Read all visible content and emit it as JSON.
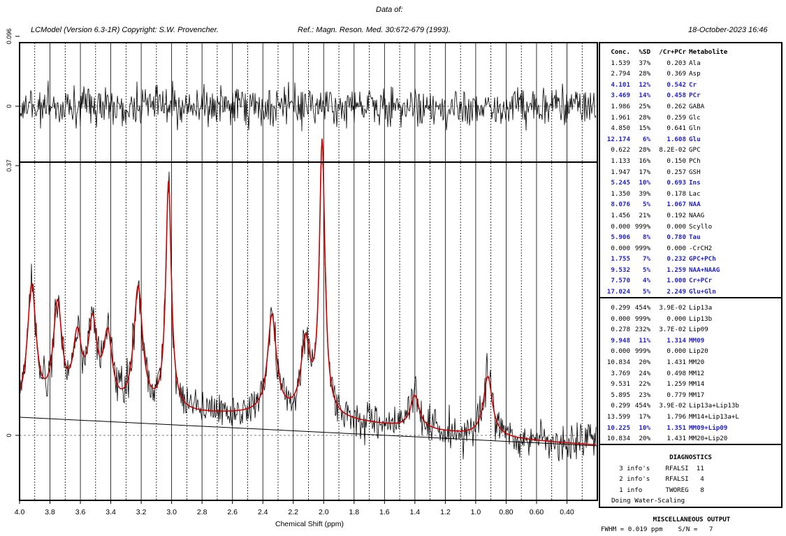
{
  "header": {
    "top": "Data of:",
    "left": "LCModel (Version 6.3-1R) Copyright: S.W. Provencher.",
    "ref": "Ref.: Magn. Reson. Med. 30:672-679 (1993).",
    "date": "18-October-2023  16:46"
  },
  "chart_data": {
    "type": "line",
    "xlabel": "Chemical Shift (ppm)",
    "xlim": [
      4.0,
      0.2
    ],
    "x_ticks": [
      "4.0",
      "3.8",
      "3.6",
      "3.4",
      "3.2",
      "3.0",
      "2.8",
      "2.6",
      "2.4",
      "2.2",
      "2.0",
      "1.8",
      "1.6",
      "1.4",
      "1.2",
      "1.0",
      "0.80",
      "0.60",
      "0.40"
    ],
    "residual_panel": {
      "y_ticks": [
        "0.096",
        "0"
      ]
    },
    "spectrum_panel": {
      "y_ticks": [
        "0.37",
        "0"
      ],
      "fit_peaks": [
        {
          "ppm": 3.92,
          "height": 0.46
        },
        {
          "ppm": 3.75,
          "height": 0.38
        },
        {
          "ppm": 3.62,
          "height": 0.25
        },
        {
          "ppm": 3.52,
          "height": 0.3
        },
        {
          "ppm": 3.42,
          "height": 0.26
        },
        {
          "ppm": 3.22,
          "height": 0.45
        },
        {
          "ppm": 3.02,
          "height": 0.84
        },
        {
          "ppm": 2.34,
          "height": 0.36
        },
        {
          "ppm": 2.12,
          "height": 0.26
        },
        {
          "ppm": 2.01,
          "height": 1.0
        },
        {
          "ppm": 1.4,
          "height": 0.12
        },
        {
          "ppm": 0.92,
          "height": 0.22
        }
      ]
    },
    "series": [
      {
        "name": "Data",
        "color": "#000000"
      },
      {
        "name": "Fit",
        "color": "#cc0000"
      },
      {
        "name": "Baseline",
        "color": "#000000"
      }
    ]
  },
  "table": {
    "headers": [
      "Conc.",
      "%SD",
      "/Cr+PCr",
      "Metabolite"
    ],
    "metabolites": [
      {
        "conc": "1.539",
        "sd": "37%",
        "ratio": "0.203",
        "name": "Ala",
        "hl": false
      },
      {
        "conc": "2.794",
        "sd": "28%",
        "ratio": "0.369",
        "name": "Asp",
        "hl": false
      },
      {
        "conc": "4.101",
        "sd": "12%",
        "ratio": "0.542",
        "name": "Cr",
        "hl": true
      },
      {
        "conc": "3.469",
        "sd": "14%",
        "ratio": "0.458",
        "name": "PCr",
        "hl": true
      },
      {
        "conc": "1.986",
        "sd": "25%",
        "ratio": "0.262",
        "name": "GABA",
        "hl": false
      },
      {
        "conc": "1.961",
        "sd": "28%",
        "ratio": "0.259",
        "name": "Glc",
        "hl": false
      },
      {
        "conc": "4.850",
        "sd": "15%",
        "ratio": "0.641",
        "name": "Gln",
        "hl": false
      },
      {
        "conc": "12.174",
        "sd": "6%",
        "ratio": "1.608",
        "name": "Glu",
        "hl": true
      },
      {
        "conc": "0.622",
        "sd": "28%",
        "ratio": "8.2E-02",
        "name": "GPC",
        "hl": false
      },
      {
        "conc": "1.133",
        "sd": "16%",
        "ratio": "0.150",
        "name": "PCh",
        "hl": false
      },
      {
        "conc": "1.947",
        "sd": "17%",
        "ratio": "0.257",
        "name": "GSH",
        "hl": false
      },
      {
        "conc": "5.245",
        "sd": "10%",
        "ratio": "0.693",
        "name": "Ins",
        "hl": true
      },
      {
        "conc": "1.350",
        "sd": "39%",
        "ratio": "0.178",
        "name": "Lac",
        "hl": false
      },
      {
        "conc": "8.076",
        "sd": "5%",
        "ratio": "1.067",
        "name": "NAA",
        "hl": true
      },
      {
        "conc": "1.456",
        "sd": "21%",
        "ratio": "0.192",
        "name": "NAAG",
        "hl": false
      },
      {
        "conc": "0.000",
        "sd": "999%",
        "ratio": "0.000",
        "name": "Scyllo",
        "hl": false
      },
      {
        "conc": "5.906",
        "sd": "8%",
        "ratio": "0.780",
        "name": "Tau",
        "hl": true
      },
      {
        "conc": "0.000",
        "sd": "999%",
        "ratio": "0.000",
        "name": "-CrCH2",
        "hl": false
      },
      {
        "conc": "1.755",
        "sd": "7%",
        "ratio": "0.232",
        "name": "GPC+PCh",
        "hl": true
      },
      {
        "conc": "9.532",
        "sd": "5%",
        "ratio": "1.259",
        "name": "NAA+NAAG",
        "hl": true
      },
      {
        "conc": "7.570",
        "sd": "4%",
        "ratio": "1.000",
        "name": "Cr+PCr",
        "hl": true
      },
      {
        "conc": "17.024",
        "sd": "5%",
        "ratio": "2.249",
        "name": "Glu+Gln",
        "hl": true
      }
    ],
    "lipids": [
      {
        "conc": "0.299",
        "sd": "454%",
        "ratio": "3.9E-02",
        "name": "Lip13a",
        "hl": false
      },
      {
        "conc": "0.000",
        "sd": "999%",
        "ratio": "0.000",
        "name": "Lip13b",
        "hl": false
      },
      {
        "conc": "0.278",
        "sd": "232%",
        "ratio": "3.7E-02",
        "name": "Lip09",
        "hl": false
      },
      {
        "conc": "9.948",
        "sd": "11%",
        "ratio": "1.314",
        "name": "MM09",
        "hl": true
      },
      {
        "conc": "0.000",
        "sd": "999%",
        "ratio": "0.000",
        "name": "Lip20",
        "hl": false
      },
      {
        "conc": "10.834",
        "sd": "20%",
        "ratio": "1.431",
        "name": "MM20",
        "hl": false
      },
      {
        "conc": "3.769",
        "sd": "24%",
        "ratio": "0.498",
        "name": "MM12",
        "hl": false
      },
      {
        "conc": "9.531",
        "sd": "22%",
        "ratio": "1.259",
        "name": "MM14",
        "hl": false
      },
      {
        "conc": "5.895",
        "sd": "23%",
        "ratio": "0.779",
        "name": "MM17",
        "hl": false
      },
      {
        "conc": "0.299",
        "sd": "454%",
        "ratio": "3.9E-02",
        "name": "Lip13a+Lip13b",
        "hl": false
      },
      {
        "conc": "13.599",
        "sd": "17%",
        "ratio": "1.796",
        "name": "MM14+Lip13a+L",
        "hl": false
      },
      {
        "conc": "10.225",
        "sd": "10%",
        "ratio": "1.351",
        "name": "MM09+Lip09",
        "hl": true
      },
      {
        "conc": "10.834",
        "sd": "20%",
        "ratio": "1.431",
        "name": "MM20+Lip20",
        "hl": false
      }
    ]
  },
  "diagnostics": {
    "title": "DIAGNOSTICS",
    "lines": [
      "  3 info's    RFALSI  11",
      "  2 info's    RFALSI   4",
      "  1 info      TWOREG   8",
      "Doing Water-Scaling"
    ]
  },
  "misc": {
    "title": "MISCELLANEOUS OUTPUT",
    "line": "FWHM = 0.019 ppm    S/N =   7"
  }
}
